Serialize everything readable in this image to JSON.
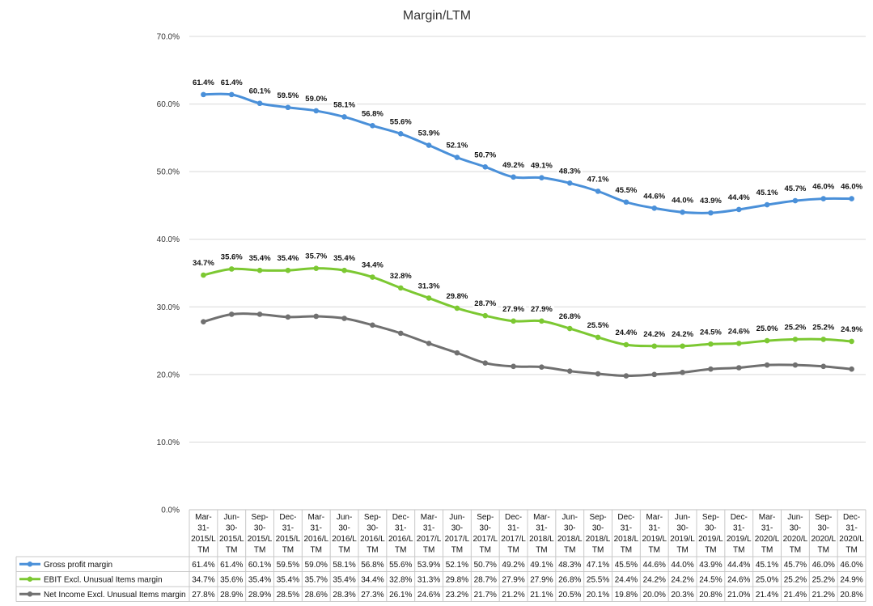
{
  "chart_data": {
    "type": "line",
    "title": "Margin/LTM",
    "ylim": [
      0,
      70
    ],
    "yticks": [
      "0.0%",
      "10.0%",
      "20.0%",
      "30.0%",
      "40.0%",
      "50.0%",
      "60.0%",
      "70.0%"
    ],
    "grid": true,
    "legend": "data-table-bottom",
    "categories": [
      [
        "Mar-",
        "31-",
        "2015/L",
        "TM"
      ],
      [
        "Jun-",
        "30-",
        "2015/L",
        "TM"
      ],
      [
        "Sep-",
        "30-",
        "2015/L",
        "TM"
      ],
      [
        "Dec-",
        "31-",
        "2015/L",
        "TM"
      ],
      [
        "Mar-",
        "31-",
        "2016/L",
        "TM"
      ],
      [
        "Jun-",
        "30-",
        "2016/L",
        "TM"
      ],
      [
        "Sep-",
        "30-",
        "2016/L",
        "TM"
      ],
      [
        "Dec-",
        "31-",
        "2016/L",
        "TM"
      ],
      [
        "Mar-",
        "31-",
        "2017/L",
        "TM"
      ],
      [
        "Jun-",
        "30-",
        "2017/L",
        "TM"
      ],
      [
        "Sep-",
        "30-",
        "2017/L",
        "TM"
      ],
      [
        "Dec-",
        "31-",
        "2017/L",
        "TM"
      ],
      [
        "Mar-",
        "31-",
        "2018/L",
        "TM"
      ],
      [
        "Jun-",
        "30-",
        "2018/L",
        "TM"
      ],
      [
        "Sep-",
        "30-",
        "2018/L",
        "TM"
      ],
      [
        "Dec-",
        "31-",
        "2018/L",
        "TM"
      ],
      [
        "Mar-",
        "31-",
        "2019/L",
        "TM"
      ],
      [
        "Jun-",
        "30-",
        "2019/L",
        "TM"
      ],
      [
        "Sep-",
        "30-",
        "2019/L",
        "TM"
      ],
      [
        "Dec-",
        "31-",
        "2019/L",
        "TM"
      ],
      [
        "Mar-",
        "31-",
        "2020/L",
        "TM"
      ],
      [
        "Jun-",
        "30-",
        "2020/L",
        "TM"
      ],
      [
        "Sep-",
        "30-",
        "2020/L",
        "TM"
      ],
      [
        "Dec-",
        "31-",
        "2020/L",
        "TM"
      ]
    ],
    "series": [
      {
        "name": "Gross profit margin",
        "color": "#4a90d9",
        "show_labels": true,
        "values": [
          61.4,
          61.4,
          60.1,
          59.5,
          59.0,
          58.1,
          56.8,
          55.6,
          53.9,
          52.1,
          50.7,
          49.2,
          49.1,
          48.3,
          47.1,
          45.5,
          44.6,
          44.0,
          43.9,
          44.4,
          45.1,
          45.7,
          46.0,
          46.0
        ],
        "table": [
          "61.4%",
          "61.4%",
          "60.1%",
          "59.5%",
          "59.0%",
          "58.1%",
          "56.8%",
          "55.6%",
          "53.9%",
          "52.1%",
          "50.7%",
          "49.2%",
          "49.1%",
          "48.3%",
          "47.1%",
          "45.5%",
          "44.6%",
          "44.0%",
          "43.9%",
          "44.4%",
          "45.1%",
          "45.7%",
          "46.0%",
          "46.0%"
        ]
      },
      {
        "name": "EBIT Excl. Unusual Items margin",
        "color": "#7cc832",
        "show_labels": true,
        "values": [
          34.7,
          35.6,
          35.4,
          35.4,
          35.7,
          35.4,
          34.4,
          32.8,
          31.3,
          29.8,
          28.7,
          27.9,
          27.9,
          26.8,
          25.5,
          24.4,
          24.2,
          24.2,
          24.5,
          24.6,
          25.0,
          25.2,
          25.2,
          24.9
        ],
        "table": [
          "34.7%",
          "35.6%",
          "35.4%",
          "35.4%",
          "35.7%",
          "35.4%",
          "34.4%",
          "32.8%",
          "31.3%",
          "29.8%",
          "28.7%",
          "27.9%",
          "27.9%",
          "26.8%",
          "25.5%",
          "24.4%",
          "24.2%",
          "24.2%",
          "24.5%",
          "24.6%",
          "25.0%",
          "25.2%",
          "25.2%",
          "24.9%"
        ]
      },
      {
        "name": "Net Income Excl. Unusual Items margin",
        "color": "#707070",
        "show_labels": false,
        "values": [
          27.8,
          28.9,
          28.9,
          28.5,
          28.6,
          28.3,
          27.3,
          26.1,
          24.6,
          23.2,
          21.7,
          21.2,
          21.1,
          20.5,
          20.1,
          19.8,
          20.0,
          20.3,
          20.8,
          21.0,
          21.4,
          21.4,
          21.2,
          20.8
        ],
        "table": [
          "27.8%",
          "28.9%",
          "28.9%",
          "28.5%",
          "28.6%",
          "28.3%",
          "27.3%",
          "26.1%",
          "24.6%",
          "23.2%",
          "21.7%",
          "21.2%",
          "21.1%",
          "20.5%",
          "20.1%",
          "19.8%",
          "20.0%",
          "20.3%",
          "20.8%",
          "21.0%",
          "21.4%",
          "21.4%",
          "21.2%",
          "20.8%"
        ]
      }
    ]
  }
}
